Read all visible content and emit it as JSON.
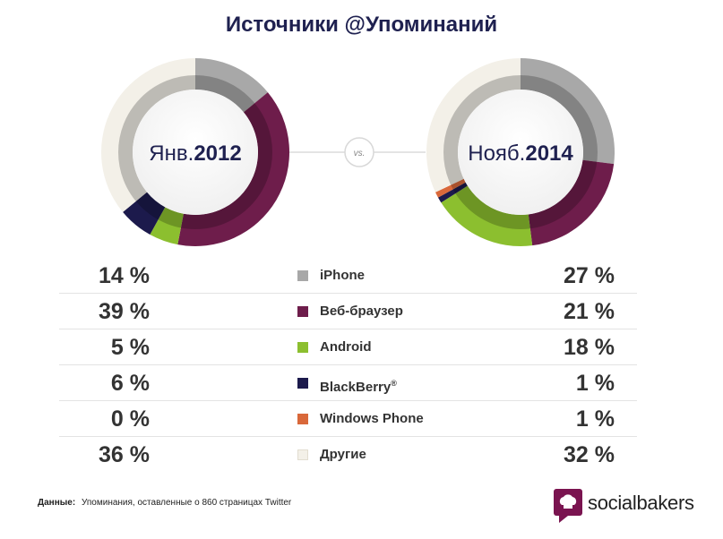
{
  "title": "Источники @Упоминаний",
  "vs_label": "vs.",
  "colors": {
    "iphone": "#a8a8a8",
    "web": "#6e1d4b",
    "android": "#8cbf2f",
    "blackberry": "#1c1a4c",
    "windows_phone": "#d9683a",
    "other": "#f3f0e8",
    "title": "#1f2150",
    "brand": "#7a1450"
  },
  "legend": [
    {
      "label": "iPhone",
      "left": "14 %",
      "right": "27 %",
      "color_key": "iphone"
    },
    {
      "label": "Веб-браузер",
      "left": "39 %",
      "right": "21 %",
      "color_key": "web"
    },
    {
      "label": "Android",
      "left": "5 %",
      "right": "18 %",
      "color_key": "android"
    },
    {
      "label": "BlackBerry",
      "left": "6 %",
      "right": "1 %",
      "color_key": "blackberry",
      "sup": "®"
    },
    {
      "label": "Windows Phone",
      "left": "0 %",
      "right": "1 %",
      "color_key": "windows_phone"
    },
    {
      "label": "Другие",
      "left": "36 %",
      "right": "32 %",
      "color_key": "other"
    }
  ],
  "chart_data": [
    {
      "type": "pie",
      "center_label_month": "Янв.",
      "center_label_year": "2012",
      "categories": [
        "iPhone",
        "Веб-браузер",
        "Android",
        "BlackBerry",
        "Windows Phone",
        "Другие"
      ],
      "values": [
        14,
        39,
        5,
        6,
        0,
        36
      ]
    },
    {
      "type": "pie",
      "center_label_month": "Нояб.",
      "center_label_year": "2014",
      "categories": [
        "iPhone",
        "Веб-браузер",
        "Android",
        "BlackBerry",
        "Windows Phone",
        "Другие"
      ],
      "values": [
        27,
        21,
        18,
        1,
        1,
        32
      ]
    }
  ],
  "source": {
    "key": "Данные:",
    "text": "Упоминания, оставленные о 860 страницах Twitter"
  },
  "brand": {
    "name": "socialbakers"
  }
}
